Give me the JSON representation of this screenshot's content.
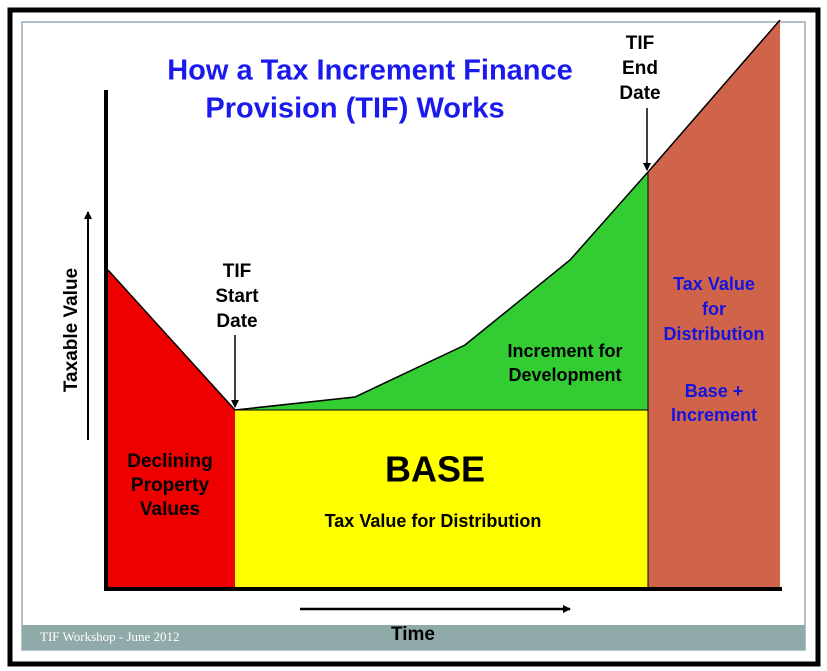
{
  "title": [
    "How a Tax Increment Finance",
    "Provision (TIF) Works"
  ],
  "axes": {
    "y": "Taxable Value",
    "x": "Time"
  },
  "markers": {
    "start": [
      "TIF",
      "Start",
      "Date"
    ],
    "end": [
      "TIF",
      "End",
      "Date"
    ]
  },
  "regions": {
    "declining": [
      "Declining",
      "Property",
      "Values"
    ],
    "base": {
      "title": "BASE",
      "subtitle": "Tax Value for Distribution"
    },
    "increment": [
      "Increment for",
      "Development"
    ],
    "distribution": [
      "Tax Value",
      "for",
      "Distribution"
    ],
    "sum": [
      "Base +",
      "Increment"
    ]
  },
  "footer": "TIF Workshop - June 2012"
}
